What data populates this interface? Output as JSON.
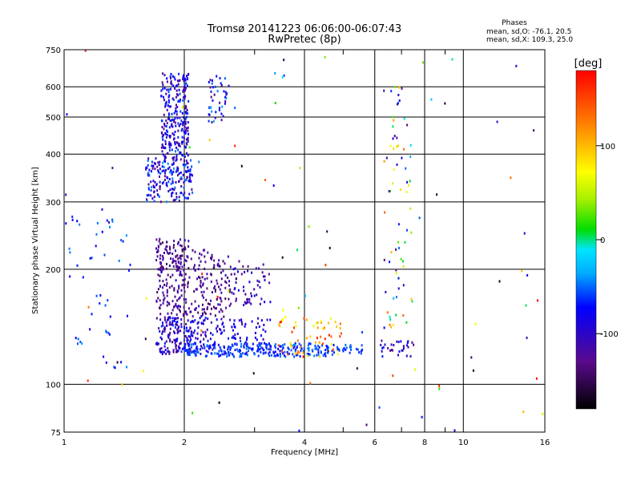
{
  "chart_data": {
    "type": "scatter",
    "title": "Tromsø 20141223 06:06:00-06:07:43",
    "subtitle": "RwPretec (8p)",
    "xlabel": "Frequency [MHz]",
    "ylabel": "Stationary phase Virtual Height [km]",
    "x_scale": "log",
    "y_scale": "log",
    "xlim": [
      1,
      16
    ],
    "ylim": [
      75,
      750
    ],
    "x_ticks": [
      1,
      2,
      4,
      6,
      8,
      10,
      16
    ],
    "x_minor_ticks": [
      3,
      5,
      7,
      9
    ],
    "y_ticks": [
      75,
      100,
      200,
      300,
      400,
      500,
      600,
      750
    ],
    "grid": true,
    "stats": {
      "heading": "Phases",
      "line_o": "mean, sd,O: -76.1, 20.5",
      "line_x": "mean, sd,X: 109.3, 25.0"
    },
    "colorbar": {
      "label": "[deg]",
      "range": [
        -180,
        180
      ],
      "ticks": [
        -100,
        0,
        100
      ]
    },
    "clusters": [
      {
        "x": [
          1.6,
          2.1
        ],
        "y": [
          300,
          390
        ],
        "phase": [
          -130,
          -40
        ],
        "n": 180
      },
      {
        "x": [
          1.75,
          2.05
        ],
        "y": [
          390,
          650
        ],
        "phase": [
          -130,
          -50
        ],
        "n": 250
      },
      {
        "x": [
          2.3,
          2.6
        ],
        "y": [
          480,
          640
        ],
        "phase": [
          -140,
          -30
        ],
        "n": 45
      },
      {
        "x": [
          1.7,
          2.05
        ],
        "y": [
          150,
          240
        ],
        "phase": [
          -150,
          -100
        ],
        "n": 200
      },
      {
        "x": [
          2.05,
          2.6
        ],
        "y": [
          150,
          225
        ],
        "phase": [
          -150,
          -100
        ],
        "n": 130
      },
      {
        "x": [
          2.6,
          3.3
        ],
        "y": [
          160,
          210
        ],
        "phase": [
          -140,
          -80
        ],
        "n": 60
      },
      {
        "x": [
          1.7,
          2.1
        ],
        "y": [
          120,
          150
        ],
        "phase": [
          -140,
          -60
        ],
        "n": 160
      },
      {
        "x": [
          2.1,
          3.3
        ],
        "y": [
          120,
          150
        ],
        "phase": [
          -120,
          -60
        ],
        "n": 130
      },
      {
        "x": [
          2.0,
          4.8
        ],
        "y": [
          118,
          128
        ],
        "phase": [
          -75,
          -45
        ],
        "n": 230
      },
      {
        "x": [
          3.4,
          5.0
        ],
        "y": [
          118,
          150
        ],
        "phase": [
          60,
          170
        ],
        "n": 60
      },
      {
        "x": [
          4.8,
          5.6
        ],
        "y": [
          120,
          127
        ],
        "phase": [
          -70,
          -45
        ],
        "n": 25
      },
      {
        "x": [
          6.2,
          7.6
        ],
        "y": [
          118,
          130
        ],
        "phase": [
          -140,
          -60
        ],
        "n": 30
      },
      {
        "x": [
          6.3,
          7.5
        ],
        "y": [
          140,
          600
        ],
        "phase": [
          -140,
          140
        ],
        "n": 70
      },
      {
        "x": [
          1.0,
          1.5
        ],
        "y": [
          110,
          290
        ],
        "phase": [
          -80,
          -40
        ],
        "n": 50
      },
      {
        "x": [
          1.0,
          16
        ],
        "y": [
          75,
          750
        ],
        "phase": [
          -180,
          180
        ],
        "n": 90
      }
    ]
  }
}
